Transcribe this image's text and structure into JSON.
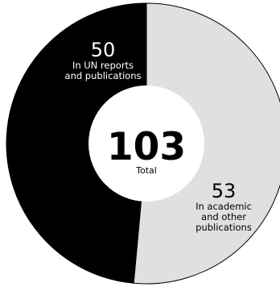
{
  "chart_data": {
    "type": "pie",
    "variant": "donut",
    "total": {
      "value": "103",
      "label": "Total"
    },
    "slices": [
      {
        "value": 53,
        "label_value": "53",
        "label_lines": [
          "In academic",
          "and other",
          "publications"
        ],
        "color": "#e0e0e0",
        "text_color": "#000000"
      },
      {
        "value": 50,
        "label_value": "50",
        "label_lines": [
          "In UN reports",
          "and publications"
        ],
        "color": "#000000",
        "text_color": "#ffffff"
      }
    ]
  }
}
